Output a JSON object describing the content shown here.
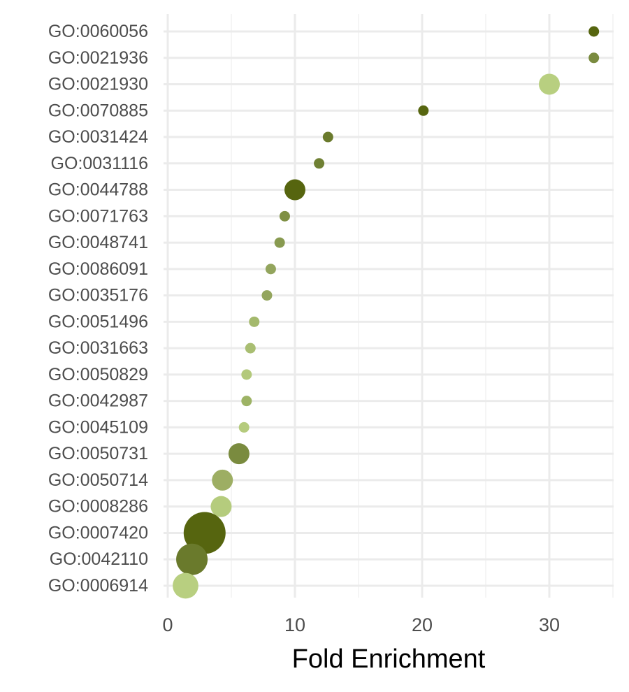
{
  "chart_data": {
    "type": "scatter",
    "xlabel": "Fold Enrichment",
    "ylabel": "",
    "xlim": [
      0,
      35
    ],
    "xticks": [
      "0",
      "10",
      "20",
      "30"
    ],
    "xtick_values": [
      0,
      10,
      20,
      30
    ],
    "grid": true,
    "legend": "none",
    "categories": [
      "GO:0060056",
      "GO:0021936",
      "GO:0021930",
      "GO:0070885",
      "GO:0031424",
      "GO:0031116",
      "GO:0044788",
      "GO:0071763",
      "GO:0048741",
      "GO:0086091",
      "GO:0035176",
      "GO:0051496",
      "GO:0031663",
      "GO:0050829",
      "GO:0042987",
      "GO:0045109",
      "GO:0050731",
      "GO:0050714",
      "GO:0008286",
      "GO:0007420",
      "GO:0042110",
      "GO:0006914"
    ],
    "points": [
      {
        "term": "GO:0060056",
        "fold_enrichment": 33.5,
        "size": 1,
        "color": "#56650f"
      },
      {
        "term": "GO:0021936",
        "fold_enrichment": 33.5,
        "size": 1,
        "color": "#7a8b3f"
      },
      {
        "term": "GO:0021930",
        "fold_enrichment": 30.0,
        "size": 4,
        "color": "#b8cf80"
      },
      {
        "term": "GO:0070885",
        "fold_enrichment": 20.1,
        "size": 1,
        "color": "#56650f"
      },
      {
        "term": "GO:0031424",
        "fold_enrichment": 12.6,
        "size": 1,
        "color": "#6a7a2c"
      },
      {
        "term": "GO:0031116",
        "fold_enrichment": 11.9,
        "size": 1,
        "color": "#6f8033"
      },
      {
        "term": "GO:0044788",
        "fold_enrichment": 10.0,
        "size": 4,
        "color": "#56650f"
      },
      {
        "term": "GO:0071763",
        "fold_enrichment": 9.2,
        "size": 1,
        "color": "#7f9044"
      },
      {
        "term": "GO:0048741",
        "fold_enrichment": 8.8,
        "size": 1,
        "color": "#889a50"
      },
      {
        "term": "GO:0086091",
        "fold_enrichment": 8.1,
        "size": 1,
        "color": "#93a55d"
      },
      {
        "term": "GO:0035176",
        "fold_enrichment": 7.8,
        "size": 1,
        "color": "#93a55d"
      },
      {
        "term": "GO:0051496",
        "fold_enrichment": 6.8,
        "size": 1,
        "color": "#a4b96d"
      },
      {
        "term": "GO:0031663",
        "fold_enrichment": 6.5,
        "size": 1,
        "color": "#a9be72"
      },
      {
        "term": "GO:0050829",
        "fold_enrichment": 6.2,
        "size": 1,
        "color": "#b3c97b"
      },
      {
        "term": "GO:0042987",
        "fold_enrichment": 6.2,
        "size": 1,
        "color": "#9db365"
      },
      {
        "term": "GO:0045109",
        "fold_enrichment": 6.0,
        "size": 1,
        "color": "#b5cb7d"
      },
      {
        "term": "GO:0050731",
        "fold_enrichment": 5.6,
        "size": 4,
        "color": "#7a8b3f"
      },
      {
        "term": "GO:0050714",
        "fold_enrichment": 4.3,
        "size": 4,
        "color": "#9dae63"
      },
      {
        "term": "GO:0008286",
        "fold_enrichment": 4.2,
        "size": 4,
        "color": "#b5cc7d"
      },
      {
        "term": "GO:0007420",
        "fold_enrichment": 2.9,
        "size": 16,
        "color": "#56650f"
      },
      {
        "term": "GO:0042110",
        "fold_enrichment": 1.9,
        "size": 9,
        "color": "#6a7a2c"
      },
      {
        "term": "GO:0006914",
        "fold_enrichment": 1.4,
        "size": 6,
        "color": "#b8cf80"
      }
    ]
  }
}
